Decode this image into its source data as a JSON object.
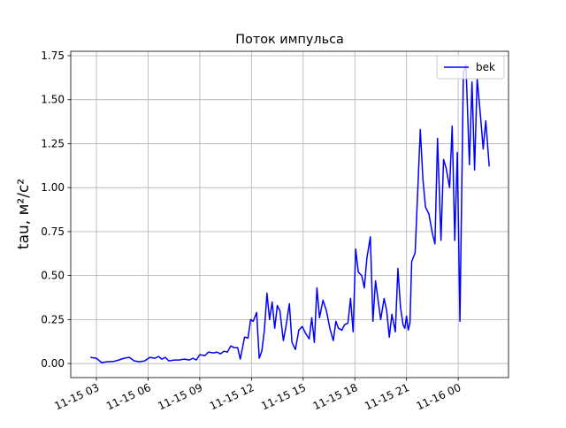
{
  "chart_data": {
    "type": "line",
    "title": "Поток импульса",
    "ylabel": "tau, м²/с²",
    "x": [
      2.65,
      3.0,
      3.3,
      3.6,
      4.0,
      4.3,
      4.6,
      4.9,
      5.2,
      5.5,
      5.8,
      6.1,
      6.4,
      6.6,
      6.8,
      7.0,
      7.2,
      7.5,
      7.8,
      8.1,
      8.4,
      8.6,
      8.8,
      9.0,
      9.3,
      9.5,
      9.8,
      10.0,
      10.2,
      10.4,
      10.6,
      10.8,
      11.0,
      11.2,
      11.35,
      11.6,
      11.8,
      11.95,
      12.1,
      12.3,
      12.45,
      12.6,
      12.75,
      12.9,
      13.05,
      13.2,
      13.35,
      13.5,
      13.65,
      13.85,
      14.0,
      14.2,
      14.35,
      14.55,
      14.75,
      14.95,
      15.15,
      15.35,
      15.5,
      15.65,
      15.8,
      15.95,
      16.15,
      16.35,
      16.55,
      16.75,
      16.9,
      17.05,
      17.25,
      17.4,
      17.6,
      17.75,
      17.9,
      18.05,
      18.2,
      18.4,
      18.55,
      18.7,
      18.9,
      19.05,
      19.2,
      19.5,
      19.7,
      19.85,
      20.0,
      20.15,
      20.35,
      20.5,
      20.65,
      20.8,
      20.9,
      21.0,
      21.1,
      21.2,
      21.3,
      21.5,
      21.8,
      21.95,
      22.1,
      22.3,
      22.5,
      22.65,
      22.8,
      23.0,
      23.15,
      23.3,
      23.5,
      23.65,
      23.8,
      23.95,
      24.1,
      24.3,
      24.45,
      24.65,
      24.8,
      24.95,
      25.1,
      25.3,
      25.45,
      25.6,
      25.8
    ],
    "series": [
      {
        "name": "bek",
        "color": "#0000ff",
        "values": [
          0.035,
          0.03,
          0.005,
          0.01,
          0.012,
          0.02,
          0.03,
          0.035,
          0.015,
          0.01,
          0.015,
          0.035,
          0.03,
          0.04,
          0.025,
          0.035,
          0.015,
          0.02,
          0.02,
          0.025,
          0.02,
          0.03,
          0.02,
          0.05,
          0.045,
          0.065,
          0.06,
          0.065,
          0.055,
          0.07,
          0.065,
          0.1,
          0.09,
          0.09,
          0.025,
          0.15,
          0.145,
          0.25,
          0.24,
          0.29,
          0.03,
          0.07,
          0.19,
          0.4,
          0.25,
          0.35,
          0.2,
          0.33,
          0.3,
          0.13,
          0.21,
          0.34,
          0.12,
          0.08,
          0.19,
          0.21,
          0.17,
          0.14,
          0.26,
          0.12,
          0.43,
          0.26,
          0.36,
          0.3,
          0.2,
          0.13,
          0.24,
          0.2,
          0.19,
          0.22,
          0.23,
          0.37,
          0.18,
          0.65,
          0.52,
          0.5,
          0.43,
          0.6,
          0.72,
          0.24,
          0.47,
          0.25,
          0.37,
          0.3,
          0.15,
          0.28,
          0.18,
          0.54,
          0.32,
          0.22,
          0.2,
          0.27,
          0.19,
          0.23,
          0.58,
          0.63,
          1.33,
          1.05,
          0.89,
          0.85,
          0.74,
          0.68,
          1.28,
          0.7,
          1.16,
          1.11,
          1.0,
          1.35,
          0.7,
          1.2,
          0.24,
          1.65,
          1.7,
          1.13,
          1.6,
          1.1,
          1.62,
          1.4,
          1.22,
          1.38,
          1.12
        ]
      }
    ],
    "xlim": [
      1.51,
      26.92
    ],
    "xticks": [
      {
        "value": 3,
        "label": "11-15 03"
      },
      {
        "value": 6,
        "label": "11-15 06"
      },
      {
        "value": 9,
        "label": "11-15 09"
      },
      {
        "value": 12,
        "label": "11-15 12"
      },
      {
        "value": 15,
        "label": "11-15 15"
      },
      {
        "value": 18,
        "label": "11-15 18"
      },
      {
        "value": 21,
        "label": "11-15 21"
      },
      {
        "value": 24,
        "label": "11-16 00"
      }
    ],
    "ylim": [
      -0.08,
      1.775
    ],
    "yticks": [
      {
        "value": 0,
        "label": "0.00"
      },
      {
        "value": 0.25,
        "label": "0.25"
      },
      {
        "value": 0.5,
        "label": "0.50"
      },
      {
        "value": 0.75,
        "label": "0.75"
      },
      {
        "value": 1,
        "label": "1.00"
      },
      {
        "value": 1.25,
        "label": "1.25"
      },
      {
        "value": 1.5,
        "label": "1.50"
      },
      {
        "value": 1.75,
        "label": "1.75"
      }
    ],
    "grid": true,
    "legend": "upper right"
  }
}
